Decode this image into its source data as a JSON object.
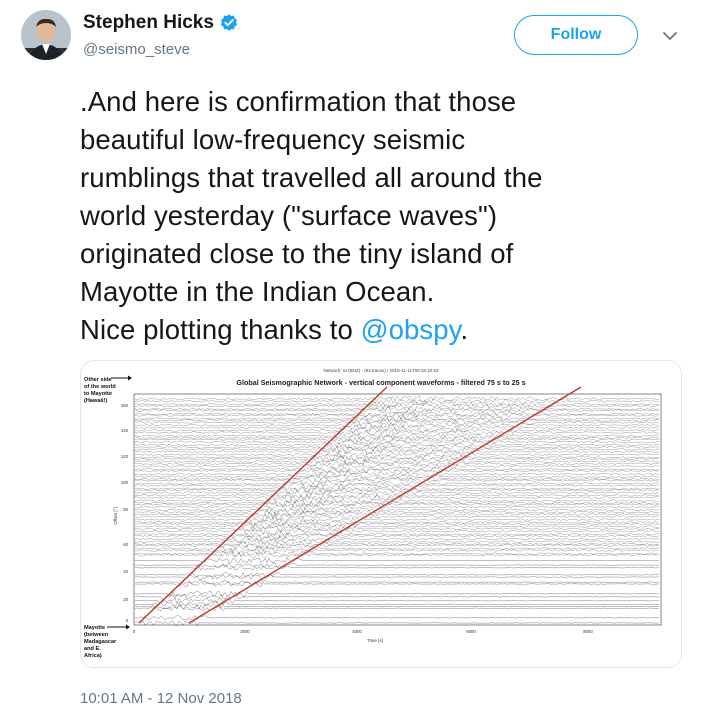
{
  "user": {
    "display_name": "Stephen Hicks",
    "handle": "@seismo_steve",
    "verified": true,
    "avatar_icon": "user-avatar"
  },
  "actions": {
    "follow_label": "Follow",
    "more_icon": "chevron-down-icon"
  },
  "tweet": {
    "lines": [
      ".And here is confirmation that those",
      "beautiful low-frequency seismic",
      "rumblings that travelled all around the",
      "world yesterday (\"surface waves\")",
      "originated close to the tiny island of",
      "Mayotte in the Indian Ocean."
    ],
    "last_line_prefix": "Nice plotting thanks to ",
    "mention": "@obspy",
    "last_line_suffix": "."
  },
  "figure": {
    "network_caption": "Network: IU (BHZ) - (94 traces) / 2018-11-11T09:18:10.53",
    "title": "Global Seismographic Network - vertical component waveforms - filtered 75 s to 25 s",
    "ylabel": "Offset [°]",
    "xlabel": "Time [s]",
    "annotation_top": [
      "Other side",
      "of the world",
      "to Mayotte",
      "(Hawaii!)"
    ],
    "annotation_bottom": [
      "Mayotte",
      "(between",
      "Madagascar",
      "and E.",
      "Africa)"
    ],
    "y_ticks": [
      "160",
      "140",
      "120",
      "100",
      "80",
      "60",
      "40",
      "20",
      "0"
    ],
    "x_ticks": [
      "0",
      "2000",
      "4000",
      "6000",
      "8000"
    ]
  },
  "timestamp": "10:01 AM - 12 Nov 2018",
  "colors": {
    "accent": "#1da1f2",
    "secondary_text": "#657786",
    "trace_lines": "#c0392b"
  }
}
